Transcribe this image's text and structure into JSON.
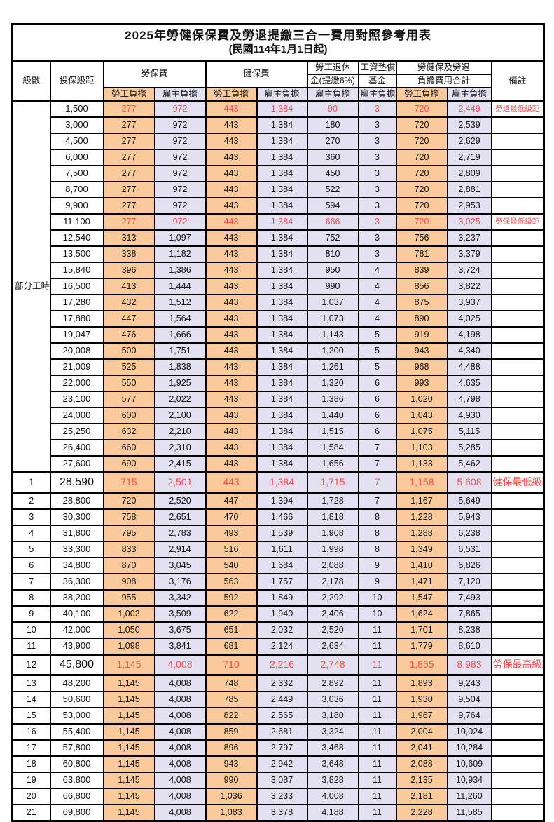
{
  "title": "2025年勞健保保費及勞退提繳三合一費用對照參考用表",
  "subtitle": "(民國114年1月1日起)",
  "header": {
    "level": "級數",
    "salary": "投保級距",
    "labor_fee": "勞保費",
    "health_fee": "健保費",
    "pension_line1": "勞工退休",
    "pension_line2": "金(提繳6%)",
    "wage_fund_line1": "工資墊償",
    "wage_fund_line2": "基金",
    "total_line1": "勞健保及勞退",
    "total_line2": "負擔費用合計",
    "remark": "備註",
    "self_pay": "勞工負擔",
    "employer_pay": "雇主負擔"
  },
  "part_time_label": "部分工時",
  "part_time_rowspan": 23,
  "colors": {
    "self_bg": "#fbca9a",
    "employer_bg": "#e3e1f1",
    "highlight_red": "#fb4b4b",
    "border": "#000000"
  },
  "rows": [
    {
      "level": "",
      "salary": "1,500",
      "values": [
        "277",
        "972",
        "443",
        "1,384",
        "90",
        "3",
        "720",
        "2,449"
      ],
      "remark": "勞退最低級距",
      "red": true,
      "big": false
    },
    {
      "level": "",
      "salary": "3,000",
      "values": [
        "277",
        "972",
        "443",
        "1,384",
        "180",
        "3",
        "720",
        "2,539"
      ],
      "remark": "",
      "red": false,
      "big": false
    },
    {
      "level": "",
      "salary": "4,500",
      "values": [
        "277",
        "972",
        "443",
        "1,384",
        "270",
        "3",
        "720",
        "2,629"
      ],
      "remark": "",
      "red": false,
      "big": false
    },
    {
      "level": "",
      "salary": "6,000",
      "values": [
        "277",
        "972",
        "443",
        "1,384",
        "360",
        "3",
        "720",
        "2,719"
      ],
      "remark": "",
      "red": false,
      "big": false
    },
    {
      "level": "",
      "salary": "7,500",
      "values": [
        "277",
        "972",
        "443",
        "1,384",
        "450",
        "3",
        "720",
        "2,809"
      ],
      "remark": "",
      "red": false,
      "big": false
    },
    {
      "level": "",
      "salary": "8,700",
      "values": [
        "277",
        "972",
        "443",
        "1,384",
        "522",
        "3",
        "720",
        "2,881"
      ],
      "remark": "",
      "red": false,
      "big": false
    },
    {
      "level": "",
      "salary": "9,900",
      "values": [
        "277",
        "972",
        "443",
        "1,384",
        "594",
        "3",
        "720",
        "2,953"
      ],
      "remark": "",
      "red": false,
      "big": false
    },
    {
      "level": "",
      "salary": "11,100",
      "values": [
        "277",
        "972",
        "443",
        "1,384",
        "666",
        "3",
        "720",
        "3,025"
      ],
      "remark": "勞保最低級距",
      "red": true,
      "big": false
    },
    {
      "level": "",
      "salary": "12,540",
      "values": [
        "313",
        "1,097",
        "443",
        "1,384",
        "752",
        "3",
        "756",
        "3,237"
      ],
      "remark": "",
      "red": false,
      "big": false
    },
    {
      "level": "",
      "salary": "13,500",
      "values": [
        "338",
        "1,182",
        "443",
        "1,384",
        "810",
        "3",
        "781",
        "3,379"
      ],
      "remark": "",
      "red": false,
      "big": false
    },
    {
      "level": "",
      "salary": "15,840",
      "values": [
        "396",
        "1,386",
        "443",
        "1,384",
        "950",
        "4",
        "839",
        "3,724"
      ],
      "remark": "",
      "red": false,
      "big": false
    },
    {
      "level": "",
      "salary": "16,500",
      "values": [
        "413",
        "1,444",
        "443",
        "1,384",
        "990",
        "4",
        "856",
        "3,822"
      ],
      "remark": "",
      "red": false,
      "big": false
    },
    {
      "level": "",
      "salary": "17,280",
      "values": [
        "432",
        "1,512",
        "443",
        "1,384",
        "1,037",
        "4",
        "875",
        "3,937"
      ],
      "remark": "",
      "red": false,
      "big": false
    },
    {
      "level": "",
      "salary": "17,880",
      "values": [
        "447",
        "1,564",
        "443",
        "1,384",
        "1,073",
        "4",
        "890",
        "4,025"
      ],
      "remark": "",
      "red": false,
      "big": false
    },
    {
      "level": "",
      "salary": "19,047",
      "values": [
        "476",
        "1,666",
        "443",
        "1,384",
        "1,143",
        "5",
        "919",
        "4,198"
      ],
      "remark": "",
      "red": false,
      "big": false
    },
    {
      "level": "",
      "salary": "20,008",
      "values": [
        "500",
        "1,751",
        "443",
        "1,384",
        "1,200",
        "5",
        "943",
        "4,340"
      ],
      "remark": "",
      "red": false,
      "big": false
    },
    {
      "level": "",
      "salary": "21,009",
      "values": [
        "525",
        "1,838",
        "443",
        "1,384",
        "1,261",
        "5",
        "968",
        "4,488"
      ],
      "remark": "",
      "red": false,
      "big": false
    },
    {
      "level": "",
      "salary": "22,000",
      "values": [
        "550",
        "1,925",
        "443",
        "1,384",
        "1,320",
        "6",
        "993",
        "4,635"
      ],
      "remark": "",
      "red": false,
      "big": false
    },
    {
      "level": "",
      "salary": "23,100",
      "values": [
        "577",
        "2,022",
        "443",
        "1,384",
        "1,386",
        "6",
        "1,020",
        "4,798"
      ],
      "remark": "",
      "red": false,
      "big": false
    },
    {
      "level": "",
      "salary": "24,000",
      "values": [
        "600",
        "2,100",
        "443",
        "1,384",
        "1,440",
        "6",
        "1,043",
        "4,930"
      ],
      "remark": "",
      "red": false,
      "big": false
    },
    {
      "level": "",
      "salary": "25,250",
      "values": [
        "632",
        "2,210",
        "443",
        "1,384",
        "1,515",
        "6",
        "1,075",
        "5,115"
      ],
      "remark": "",
      "red": false,
      "big": false
    },
    {
      "level": "",
      "salary": "26,400",
      "values": [
        "660",
        "2,310",
        "443",
        "1,384",
        "1,584",
        "7",
        "1,103",
        "5,285"
      ],
      "remark": "",
      "red": false,
      "big": false
    },
    {
      "level": "",
      "salary": "27,600",
      "values": [
        "690",
        "2,415",
        "443",
        "1,384",
        "1,656",
        "7",
        "1,133",
        "5,462"
      ],
      "remark": "",
      "red": false,
      "big": false
    },
    {
      "level": "1",
      "salary": "28,590",
      "values": [
        "715",
        "2,501",
        "443",
        "1,384",
        "1,715",
        "7",
        "1,158",
        "5,608"
      ],
      "remark": "健保最低級距",
      "red": true,
      "big": true
    },
    {
      "level": "2",
      "salary": "28,800",
      "values": [
        "720",
        "2,520",
        "447",
        "1,394",
        "1,728",
        "7",
        "1,167",
        "5,649"
      ],
      "remark": "",
      "red": false,
      "big": false
    },
    {
      "level": "3",
      "salary": "30,300",
      "values": [
        "758",
        "2,651",
        "470",
        "1,466",
        "1,818",
        "8",
        "1,228",
        "5,943"
      ],
      "remark": "",
      "red": false,
      "big": false
    },
    {
      "level": "4",
      "salary": "31,800",
      "values": [
        "795",
        "2,783",
        "493",
        "1,539",
        "1,908",
        "8",
        "1,288",
        "6,238"
      ],
      "remark": "",
      "red": false,
      "big": false
    },
    {
      "level": "5",
      "salary": "33,300",
      "values": [
        "833",
        "2,914",
        "516",
        "1,611",
        "1,998",
        "8",
        "1,349",
        "6,531"
      ],
      "remark": "",
      "red": false,
      "big": false
    },
    {
      "level": "6",
      "salary": "34,800",
      "values": [
        "870",
        "3,045",
        "540",
        "1,684",
        "2,088",
        "9",
        "1,410",
        "6,826"
      ],
      "remark": "",
      "red": false,
      "big": false
    },
    {
      "level": "7",
      "salary": "36,300",
      "values": [
        "908",
        "3,176",
        "563",
        "1,757",
        "2,178",
        "9",
        "1,471",
        "7,120"
      ],
      "remark": "",
      "red": false,
      "big": false
    },
    {
      "level": "8",
      "salary": "38,200",
      "values": [
        "955",
        "3,342",
        "592",
        "1,849",
        "2,292",
        "10",
        "1,547",
        "7,493"
      ],
      "remark": "",
      "red": false,
      "big": false
    },
    {
      "level": "9",
      "salary": "40,100",
      "values": [
        "1,002",
        "3,509",
        "622",
        "1,940",
        "2,406",
        "10",
        "1,624",
        "7,865"
      ],
      "remark": "",
      "red": false,
      "big": false
    },
    {
      "level": "10",
      "salary": "42,000",
      "values": [
        "1,050",
        "3,675",
        "651",
        "2,032",
        "2,520",
        "11",
        "1,701",
        "8,238"
      ],
      "remark": "",
      "red": false,
      "big": false
    },
    {
      "level": "11",
      "salary": "43,900",
      "values": [
        "1,098",
        "3,841",
        "681",
        "2,124",
        "2,634",
        "11",
        "1,779",
        "8,610"
      ],
      "remark": "",
      "red": false,
      "big": false
    },
    {
      "level": "12",
      "salary": "45,800",
      "values": [
        "1,145",
        "4,008",
        "710",
        "2,216",
        "2,748",
        "11",
        "1,855",
        "8,983"
      ],
      "remark": "勞保最高級距",
      "red": true,
      "big": true
    },
    {
      "level": "13",
      "salary": "48,200",
      "values": [
        "1,145",
        "4,008",
        "748",
        "2,332",
        "2,892",
        "11",
        "1,893",
        "9,243"
      ],
      "remark": "",
      "red": false,
      "big": false
    },
    {
      "level": "14",
      "salary": "50,600",
      "values": [
        "1,145",
        "4,008",
        "785",
        "2,449",
        "3,036",
        "11",
        "1,930",
        "9,504"
      ],
      "remark": "",
      "red": false,
      "big": false
    },
    {
      "level": "15",
      "salary": "53,000",
      "values": [
        "1,145",
        "4,008",
        "822",
        "2,565",
        "3,180",
        "11",
        "1,967",
        "9,764"
      ],
      "remark": "",
      "red": false,
      "big": false
    },
    {
      "level": "16",
      "salary": "55,400",
      "values": [
        "1,145",
        "4,008",
        "859",
        "2,681",
        "3,324",
        "11",
        "2,004",
        "10,024"
      ],
      "remark": "",
      "red": false,
      "big": false
    },
    {
      "level": "17",
      "salary": "57,800",
      "values": [
        "1,145",
        "4,008",
        "896",
        "2,797",
        "3,468",
        "11",
        "2,041",
        "10,284"
      ],
      "remark": "",
      "red": false,
      "big": false
    },
    {
      "level": "18",
      "salary": "60,800",
      "values": [
        "1,145",
        "4,008",
        "943",
        "2,942",
        "3,648",
        "11",
        "2,088",
        "10,609"
      ],
      "remark": "",
      "red": false,
      "big": false
    },
    {
      "level": "19",
      "salary": "63,800",
      "values": [
        "1,145",
        "4,008",
        "990",
        "3,087",
        "3,828",
        "11",
        "2,135",
        "10,934"
      ],
      "remark": "",
      "red": false,
      "big": false
    },
    {
      "level": "20",
      "salary": "66,800",
      "values": [
        "1,145",
        "4,008",
        "1,036",
        "3,233",
        "4,008",
        "11",
        "2,181",
        "11,260"
      ],
      "remark": "",
      "red": false,
      "big": false
    },
    {
      "level": "21",
      "salary": "69,800",
      "values": [
        "1,145",
        "4,008",
        "1,083",
        "3,378",
        "4,188",
        "11",
        "2,228",
        "11,585"
      ],
      "remark": "",
      "red": false,
      "big": false
    }
  ]
}
